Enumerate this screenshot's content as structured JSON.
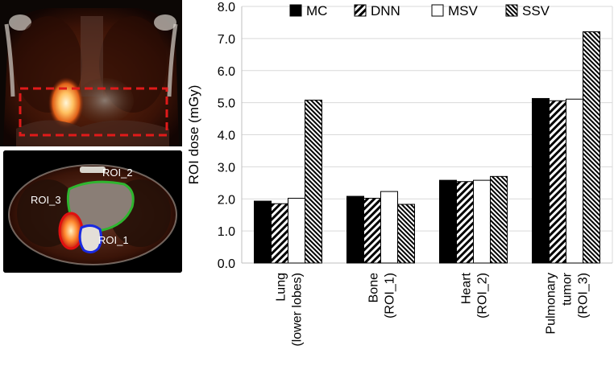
{
  "images": {
    "coronal": {
      "icon": "coronal-pet-ct-image"
    },
    "axial": {
      "icon": "axial-pet-ct-image",
      "roi_labels": {
        "roi_1": "ROI_1",
        "roi_2": "ROI_2",
        "roi_3": "ROI_3"
      }
    }
  },
  "chart_data": {
    "type": "bar",
    "title": "",
    "xlabel": "",
    "ylabel": "ROI dose (mGy)",
    "ylim": [
      0,
      8
    ],
    "yticks": [
      "0.0",
      "1.0",
      "2.0",
      "3.0",
      "4.0",
      "5.0",
      "6.0",
      "7.0",
      "8.0"
    ],
    "grid": true,
    "legend_position": "top",
    "categories": [
      [
        "Lung",
        "(lower lobes)"
      ],
      [
        "Bone",
        "(ROI_1)"
      ],
      [
        "Heart",
        "(ROI_2)"
      ],
      [
        "Pulmonary",
        "tumor",
        "(ROI_3)"
      ]
    ],
    "series": [
      {
        "name": "MC",
        "pattern": "solid-black",
        "values": [
          1.93,
          2.08,
          2.58,
          5.13
        ]
      },
      {
        "name": "DNN",
        "pattern": "diagonal-hatch",
        "values": [
          1.85,
          2.02,
          2.54,
          5.06
        ]
      },
      {
        "name": "MSV",
        "pattern": "white",
        "values": [
          2.02,
          2.23,
          2.58,
          5.11
        ]
      },
      {
        "name": "SSV",
        "pattern": "dense-cross-hatch",
        "values": [
          5.08,
          1.83,
          2.7,
          7.21
        ]
      }
    ]
  }
}
